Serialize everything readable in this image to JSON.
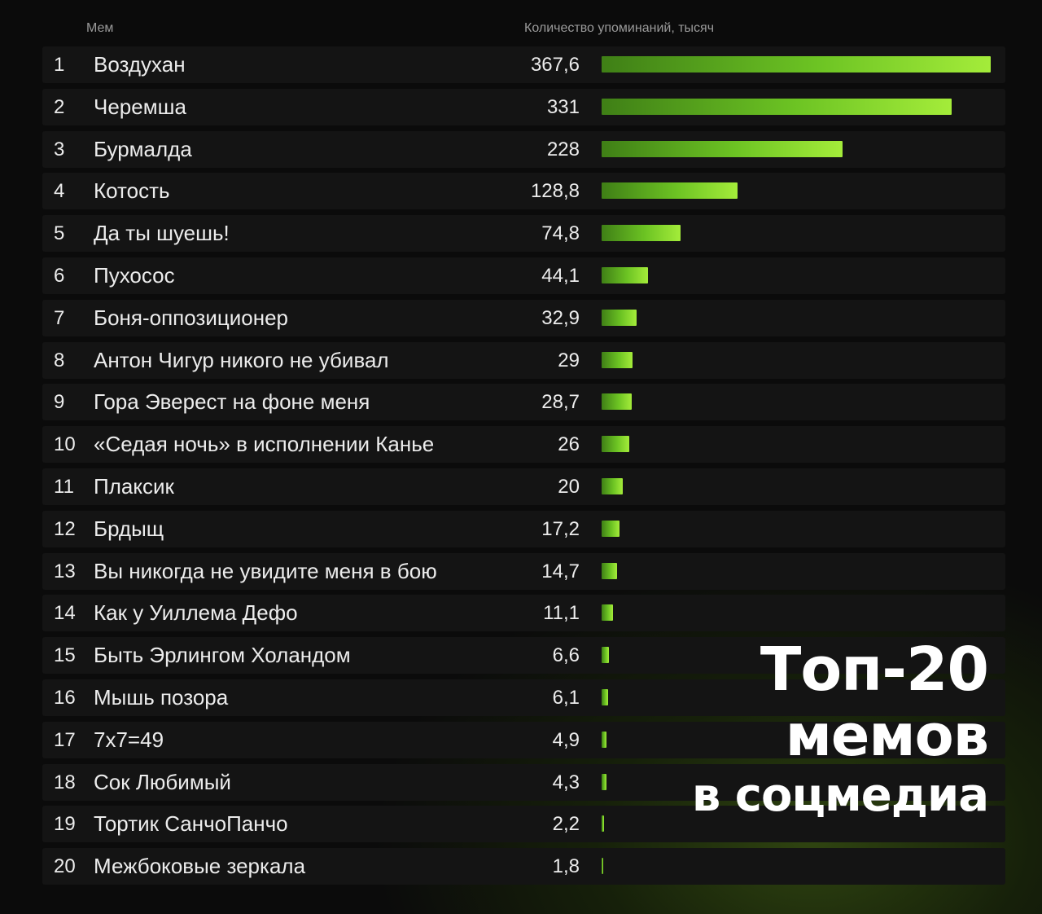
{
  "header": {
    "col_meme": "Мем",
    "col_count": "Количество упоминаний, тысяч"
  },
  "title": {
    "line1": "Топ-20",
    "line2": "мемов",
    "line3": "в соцмедиа"
  },
  "colors": {
    "bar_start": "#3f7f16",
    "bar_end": "#a4ec3a",
    "background": "#0b0b0b"
  },
  "chart_data": {
    "type": "bar",
    "orientation": "horizontal",
    "title": "Топ-20 мемов в соцмедиа",
    "xlabel": "Количество упоминаний, тысяч",
    "ylabel": "Мем",
    "xlim": [
      0,
      367.6
    ],
    "grid": false,
    "legend": "none",
    "rows": [
      {
        "rank": "1",
        "name": "Воздухан",
        "label": "367,6",
        "value": 367.6
      },
      {
        "rank": "2",
        "name": "Черемша",
        "label": "331",
        "value": 331
      },
      {
        "rank": "3",
        "name": "Бурмалда",
        "label": "228",
        "value": 228
      },
      {
        "rank": "4",
        "name": "Котость",
        "label": "128,8",
        "value": 128.8
      },
      {
        "rank": "5",
        "name": "Да ты шуешь!",
        "label": "74,8",
        "value": 74.8
      },
      {
        "rank": "6",
        "name": "Пухосос",
        "label": "44,1",
        "value": 44.1
      },
      {
        "rank": "7",
        "name": "Боня-оппозиционер",
        "label": "32,9",
        "value": 32.9
      },
      {
        "rank": "8",
        "name": "Антон Чигур никого не убивал",
        "label": "29",
        "value": 29
      },
      {
        "rank": "9",
        "name": "Гора Эверест на фоне меня",
        "label": "28,7",
        "value": 28.7
      },
      {
        "rank": "10",
        "name": "«Седая ночь» в исполнении Канье",
        "label": "26",
        "value": 26
      },
      {
        "rank": "11",
        "name": "Плаксик",
        "label": "20",
        "value": 20
      },
      {
        "rank": "12",
        "name": "Брдыщ",
        "label": "17,2",
        "value": 17.2
      },
      {
        "rank": "13",
        "name": "Вы никогда не увидите меня в бою",
        "label": "14,7",
        "value": 14.7
      },
      {
        "rank": "14",
        "name": "Как у Уиллема Дефо",
        "label": "11,1",
        "value": 11.1
      },
      {
        "rank": "15",
        "name": "Быть Эрлингом Холандом",
        "label": "6,6",
        "value": 6.6
      },
      {
        "rank": "16",
        "name": "Мышь позора",
        "label": "6,1",
        "value": 6.1
      },
      {
        "rank": "17",
        "name": "7x7=49",
        "label": "4,9",
        "value": 4.9
      },
      {
        "rank": "18",
        "name": "Сок Любимый",
        "label": "4,3",
        "value": 4.3
      },
      {
        "rank": "19",
        "name": "Тортик СанчоПанчо",
        "label": "2,2",
        "value": 2.2
      },
      {
        "rank": "20",
        "name": "Межбоковые зеркала",
        "label": "1,8",
        "value": 1.8
      }
    ]
  }
}
